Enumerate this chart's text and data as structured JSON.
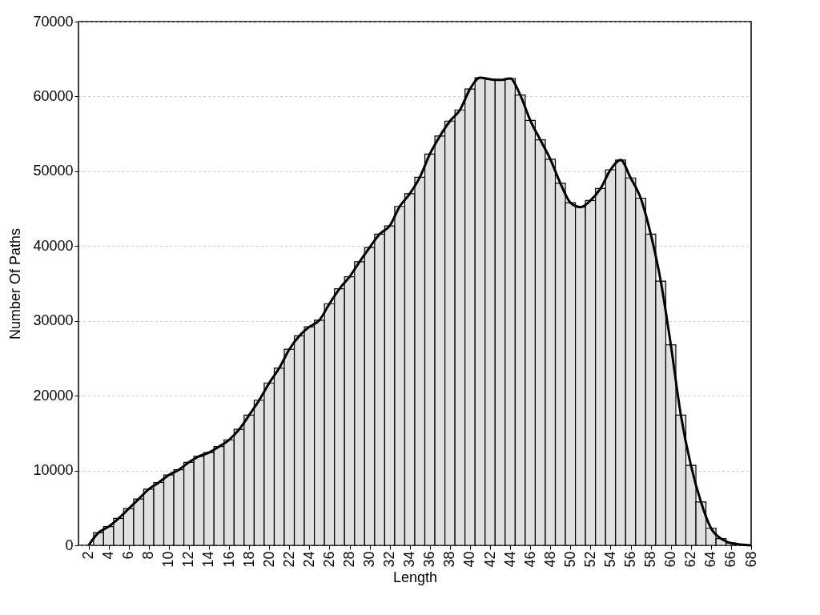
{
  "chart_data": {
    "type": "bar",
    "xlabel": "Length",
    "ylabel": "Number Of Paths",
    "x": [
      3,
      4,
      5,
      6,
      7,
      8,
      9,
      10,
      11,
      12,
      13,
      14,
      15,
      16,
      17,
      18,
      19,
      20,
      21,
      22,
      23,
      24,
      25,
      26,
      27,
      28,
      29,
      30,
      31,
      32,
      33,
      34,
      35,
      36,
      37,
      38,
      39,
      40,
      41,
      42,
      43,
      44,
      45,
      46,
      47,
      48,
      49,
      50,
      51,
      52,
      53,
      54,
      55,
      56,
      57,
      58,
      59,
      60,
      61,
      62,
      63,
      64,
      65,
      66
    ],
    "series": [
      {
        "color": "#e0e0e0",
        "values": [
          1700,
          2500,
          3600,
          4900,
          6200,
          7500,
          8400,
          9400,
          10100,
          11100,
          11900,
          12400,
          13200,
          14100,
          15500,
          17400,
          19400,
          21700,
          23700,
          26200,
          28000,
          29200,
          30100,
          32300,
          34300,
          35900,
          37900,
          39800,
          41600,
          42700,
          45300,
          47000,
          49200,
          52300,
          54700,
          56700,
          58200,
          61000,
          62500,
          62300,
          62200,
          62400,
          60200,
          56800,
          54200,
          51600,
          48400,
          45800,
          45200,
          46100,
          47700,
          50200,
          51500,
          49100,
          46400,
          41600,
          35300,
          26800,
          17400,
          10700,
          5800,
          2300,
          900,
          300
        ]
      },
      {
        "type": "line",
        "color": "#000000",
        "x": [
          2,
          3,
          4,
          5,
          6,
          7,
          8,
          9,
          10,
          11,
          12,
          13,
          14,
          15,
          16,
          17,
          18,
          19,
          20,
          21,
          22,
          23,
          24,
          25,
          26,
          27,
          28,
          29,
          30,
          31,
          32,
          33,
          34,
          35,
          36,
          37,
          38,
          39,
          40,
          41,
          42,
          43,
          44,
          45,
          46,
          47,
          48,
          49,
          50,
          51,
          52,
          53,
          54,
          55,
          56,
          57,
          58,
          59,
          60,
          61,
          62,
          63,
          64,
          65,
          66,
          67,
          68
        ],
        "values": [
          0,
          1700,
          2500,
          3600,
          4900,
          6200,
          7500,
          8400,
          9400,
          10100,
          11100,
          11900,
          12400,
          13200,
          14100,
          15500,
          17400,
          19400,
          21700,
          23700,
          26200,
          28000,
          29200,
          30100,
          32300,
          34300,
          35900,
          37900,
          39800,
          41600,
          42700,
          45300,
          47000,
          49200,
          52300,
          54700,
          56700,
          58200,
          61000,
          62500,
          62300,
          62200,
          62400,
          60200,
          56800,
          54200,
          51600,
          48400,
          45800,
          45200,
          46100,
          47700,
          50200,
          51500,
          49100,
          46400,
          41600,
          35300,
          26800,
          17400,
          10700,
          5800,
          2300,
          900,
          300,
          100,
          0
        ]
      }
    ],
    "xlim": [
      1,
      68
    ],
    "xticks": [
      2,
      4,
      6,
      8,
      10,
      12,
      14,
      16,
      18,
      20,
      22,
      24,
      26,
      28,
      30,
      32,
      34,
      36,
      38,
      40,
      42,
      44,
      46,
      48,
      50,
      52,
      54,
      56,
      58,
      60,
      62,
      64,
      66,
      68
    ],
    "ylim": [
      0,
      70000
    ],
    "yticks": [
      0,
      10000,
      20000,
      30000,
      40000,
      50000,
      60000,
      70000
    ],
    "grid": "y",
    "line_style": "solid"
  }
}
